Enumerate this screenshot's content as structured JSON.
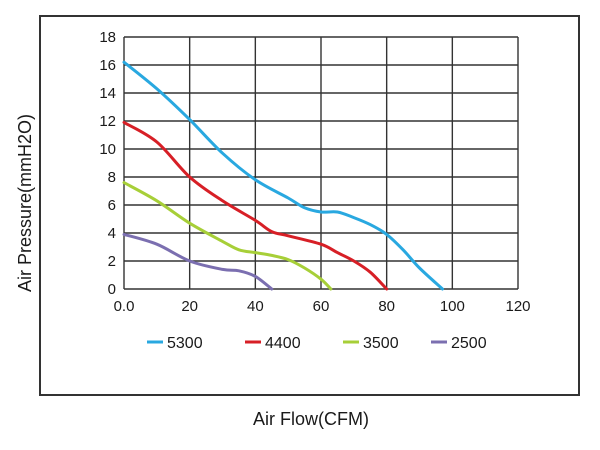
{
  "chart_data": {
    "type": "line",
    "title": "",
    "xlabel": "Air Flow(CFM)",
    "ylabel": "Air Pressure(mmH2O)",
    "xlim": [
      0,
      120
    ],
    "ylim": [
      0,
      18
    ],
    "xticks": [
      0,
      20,
      40,
      60,
      80,
      100,
      120
    ],
    "xtick_labels": [
      "0.0",
      "20",
      "40",
      "60",
      "80",
      "100",
      "120"
    ],
    "yticks": [
      0,
      2,
      4,
      6,
      8,
      10,
      12,
      14,
      16,
      18
    ],
    "ytick_labels": [
      "0",
      "2",
      "4",
      "6",
      "8",
      "10",
      "12",
      "14",
      "16",
      "18"
    ],
    "grid": true,
    "legend_position": "bottom",
    "series": [
      {
        "name": "5300",
        "color": "#29a8e0",
        "x": [
          0,
          10,
          20,
          30,
          40,
          50,
          55,
          60,
          65,
          70,
          75,
          80,
          85,
          90,
          97
        ],
        "y": [
          16.2,
          14.3,
          12.1,
          9.7,
          7.8,
          6.5,
          5.8,
          5.5,
          5.5,
          5.1,
          4.6,
          3.9,
          2.8,
          1.5,
          0
        ]
      },
      {
        "name": "4400",
        "color": "#d71f26",
        "x": [
          0,
          10,
          20,
          30,
          40,
          45,
          50,
          60,
          65,
          70,
          75,
          80
        ],
        "y": [
          11.9,
          10.5,
          8.0,
          6.3,
          4.9,
          4.1,
          3.8,
          3.2,
          2.6,
          2.0,
          1.2,
          0
        ]
      },
      {
        "name": "3500",
        "color": "#a7cf38",
        "x": [
          0,
          10,
          20,
          30,
          35,
          40,
          45,
          50,
          55,
          60,
          63
        ],
        "y": [
          7.6,
          6.3,
          4.7,
          3.4,
          2.8,
          2.6,
          2.4,
          2.1,
          1.5,
          0.7,
          0
        ]
      },
      {
        "name": "2500",
        "color": "#7b6fb0",
        "x": [
          0,
          10,
          20,
          30,
          35,
          40,
          45
        ],
        "y": [
          3.9,
          3.2,
          2.0,
          1.4,
          1.3,
          0.9,
          0
        ]
      }
    ]
  }
}
